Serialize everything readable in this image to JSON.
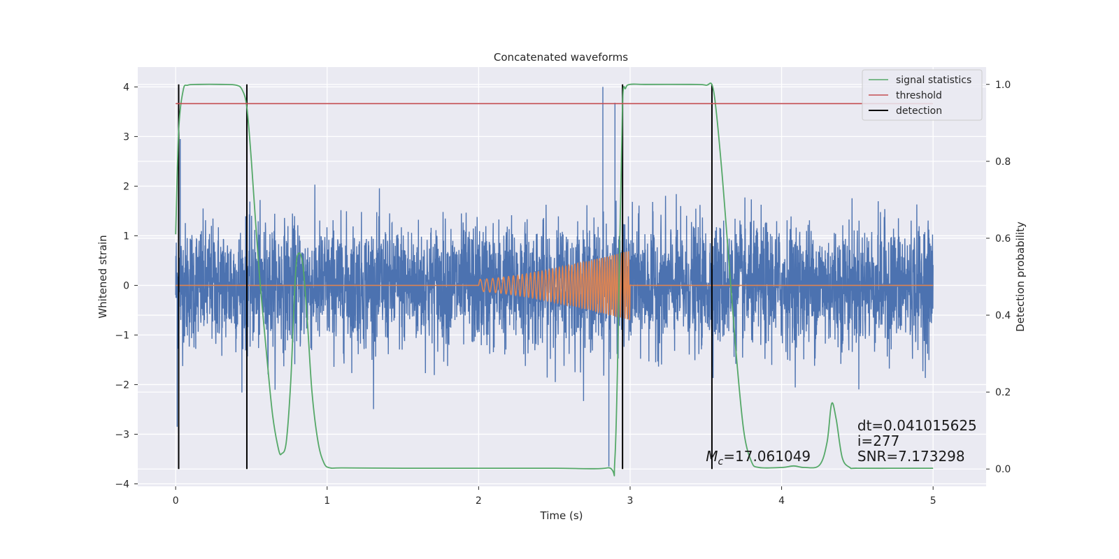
{
  "chart_data": {
    "type": "line",
    "title": "Concatenated waveforms",
    "xlabel": "Time (s)",
    "ylabel": "Whitened strain",
    "y2label": "Detection probability",
    "xlim": [
      -0.25,
      5.35
    ],
    "ylim": [
      -4.05,
      4.4
    ],
    "y2lim": [
      -0.045,
      1.045
    ],
    "xticks": [
      0,
      1,
      2,
      3,
      4,
      5
    ],
    "yticks": [
      -4,
      -3,
      -2,
      -1,
      0,
      1,
      2,
      3,
      4
    ],
    "y2ticks": [
      0.0,
      0.2,
      0.4,
      0.6,
      0.8,
      1.0
    ],
    "y2tick_labels": [
      "0.0",
      "0.2",
      "0.4",
      "0.6",
      "0.8",
      "1.0"
    ],
    "grid": true,
    "legend_position": "top-right",
    "colors": {
      "background": "#eaeaf2",
      "strain": "#4c72b0",
      "template": "#dd8452",
      "signal_statistics": "#55a868",
      "threshold": "#c44e52",
      "detection": "#000000"
    },
    "series": [
      {
        "name": "",
        "kind": "strain-noise",
        "axis": "left",
        "x_range": [
          0,
          5
        ],
        "envelope_typical": 1.2,
        "spike_max": 4.0,
        "spike_min": -3.65
      },
      {
        "name": "",
        "kind": "template-chirp",
        "axis": "left",
        "x_range": [
          0,
          5
        ],
        "chirp_range": [
          2.0,
          3.0
        ],
        "amp_start": 0.12,
        "amp_end": 0.7
      },
      {
        "name": "signal statistics",
        "axis": "right",
        "x": [
          0.0,
          0.02,
          0.05,
          0.08,
          0.15,
          0.3,
          0.4,
          0.44,
          0.47,
          0.5,
          0.55,
          0.6,
          0.64,
          0.68,
          0.7,
          0.73,
          0.76,
          0.79,
          0.81,
          0.84,
          0.87,
          0.9,
          0.94,
          0.98,
          1.02,
          1.1,
          1.5,
          2.0,
          2.5,
          2.85,
          2.9,
          2.93,
          2.95,
          2.97,
          3.0,
          3.1,
          3.4,
          3.5,
          3.55,
          3.6,
          3.65,
          3.7,
          3.75,
          3.8,
          3.85,
          4.0,
          4.08,
          4.15,
          4.25,
          4.3,
          4.33,
          4.36,
          4.4,
          4.45,
          4.5,
          4.8,
          5.0
        ],
        "y": [
          0.61,
          0.88,
          0.985,
          0.998,
          1.0,
          1.0,
          0.998,
          0.985,
          0.94,
          0.8,
          0.52,
          0.3,
          0.14,
          0.05,
          0.04,
          0.07,
          0.23,
          0.5,
          0.56,
          0.53,
          0.38,
          0.2,
          0.07,
          0.015,
          0.003,
          0.003,
          0.002,
          0.002,
          0.002,
          0.003,
          0.03,
          0.55,
          0.95,
          0.99,
          1.0,
          1.0,
          1.0,
          0.998,
          0.985,
          0.8,
          0.55,
          0.3,
          0.1,
          0.02,
          0.004,
          0.004,
          0.008,
          0.004,
          0.01,
          0.07,
          0.17,
          0.13,
          0.03,
          0.004,
          0.002,
          0.002,
          0.002
        ]
      },
      {
        "name": "threshold",
        "axis": "right",
        "x": [
          0,
          5
        ],
        "y": [
          0.95,
          0.95
        ]
      },
      {
        "name": "detection",
        "axis": "right",
        "x": [
          0.02,
          0.47,
          2.95,
          3.54
        ],
        "y_range": [
          0.0,
          1.0
        ]
      }
    ],
    "annotations": [
      {
        "id": "dt",
        "text": "dt=0.041015625",
        "x": 4.5,
        "y2": 0.1
      },
      {
        "id": "i",
        "text": " i=277",
        "x": 4.5,
        "y2": 0.06
      },
      {
        "id": "snr",
        "text": "SNR=7.173298",
        "x": 4.5,
        "y2": 0.02
      },
      {
        "id": "mc",
        "text_main": "M",
        "text_sub": "c",
        "text_value": "=17.061049",
        "x": 3.5,
        "y2": 0.02
      }
    ]
  }
}
